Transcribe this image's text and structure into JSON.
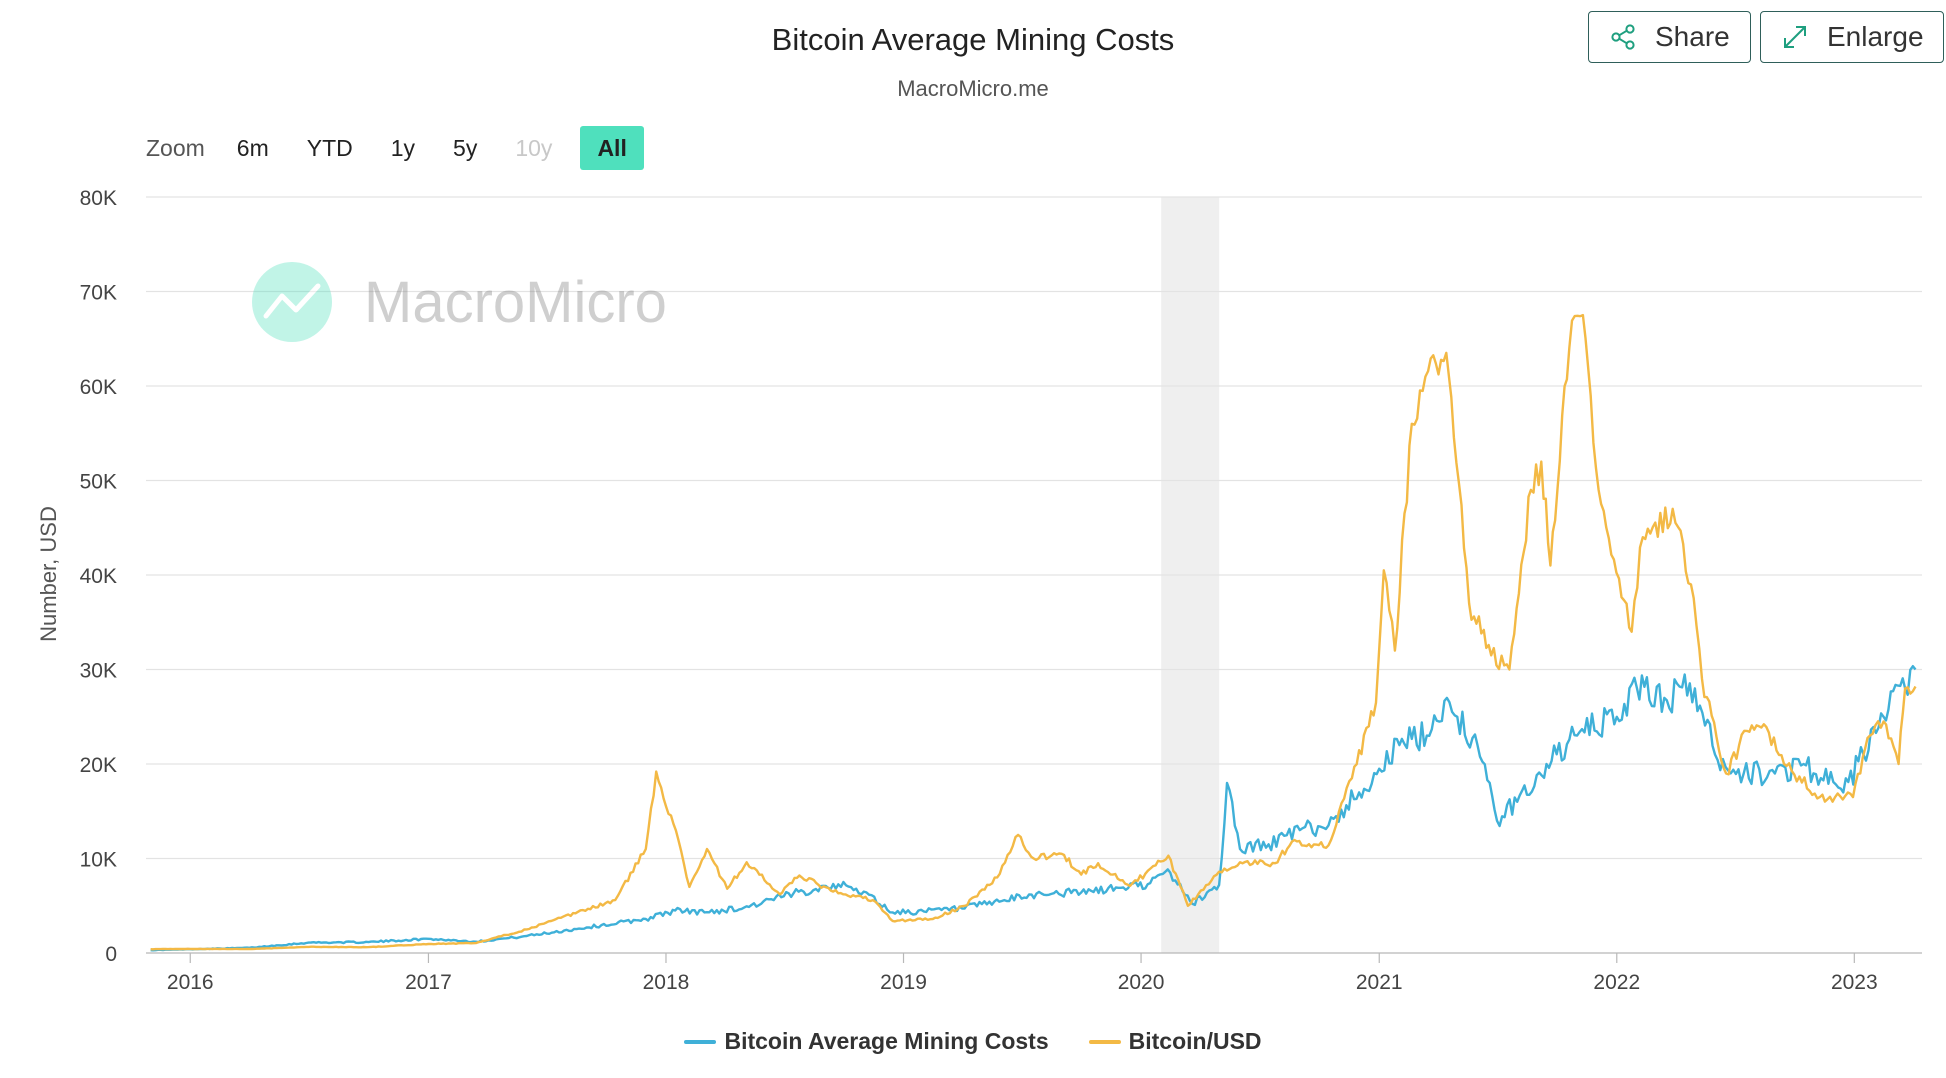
{
  "header": {
    "title": "Bitcoin Average Mining Costs",
    "subtitle": "MacroMicro.me"
  },
  "toolbar": {
    "share_label": "Share",
    "enlarge_label": "Enlarge",
    "share_icon": "share-icon",
    "enlarge_icon": "enlarge-icon"
  },
  "zoom": {
    "label": "Zoom",
    "buttons": [
      "6m",
      "YTD",
      "1y",
      "5y",
      "10y",
      "All"
    ],
    "active": "All",
    "disabled": [
      "10y"
    ]
  },
  "watermark": {
    "text": "MacroMicro",
    "icon": "macromicro-logo-icon"
  },
  "colors": {
    "mining_cost": "#3fb0d8",
    "price": "#f3b945",
    "zoom_active": "#4fe0bd",
    "shade": "#efefef"
  },
  "chart_data": {
    "type": "line",
    "title": "Bitcoin Average Mining Costs",
    "ylabel": "Number, USD",
    "xlabel": "",
    "ylim": [
      0,
      80000
    ],
    "xlim": [
      "2015-10-25",
      "2023-04-15"
    ],
    "y_ticks": [
      "0",
      "10K",
      "20K",
      "30K",
      "40K",
      "50K",
      "60K",
      "70K",
      "80K"
    ],
    "x_ticks": [
      "2016",
      "2017",
      "2018",
      "2019",
      "2020",
      "2021",
      "2022",
      "2023"
    ],
    "grid": true,
    "legend_position": "bottom-center",
    "shaded_band": {
      "start": "2020-02-01",
      "end": "2020-04-30"
    },
    "series": [
      {
        "name": "Bitcoin Average Mining Costs",
        "points": [
          [
            "2015-11-01",
            300
          ],
          [
            "2016-01-01",
            400
          ],
          [
            "2016-04-01",
            550
          ],
          [
            "2016-07-01",
            1100
          ],
          [
            "2016-10-01",
            1150
          ],
          [
            "2017-01-01",
            1500
          ],
          [
            "2017-03-15",
            1200
          ],
          [
            "2017-06-01",
            1800
          ],
          [
            "2017-09-01",
            2700
          ],
          [
            "2017-12-01",
            3600
          ],
          [
            "2018-01-15",
            4500
          ],
          [
            "2018-03-01",
            4300
          ],
          [
            "2018-05-01",
            4800
          ],
          [
            "2018-07-01",
            6000
          ],
          [
            "2018-09-15",
            7300
          ],
          [
            "2018-11-01",
            6500
          ],
          [
            "2018-12-15",
            4300
          ],
          [
            "2019-02-01",
            4400
          ],
          [
            "2019-04-01",
            4700
          ],
          [
            "2019-06-01",
            5500
          ],
          [
            "2019-08-01",
            6300
          ],
          [
            "2019-10-01",
            6400
          ],
          [
            "2019-12-01",
            6900
          ],
          [
            "2020-01-15",
            7400
          ],
          [
            "2020-02-15",
            8500
          ],
          [
            "2020-03-20",
            5200
          ],
          [
            "2020-04-30",
            7200
          ],
          [
            "2020-05-12",
            18000
          ],
          [
            "2020-06-01",
            11000
          ],
          [
            "2020-07-15",
            11500
          ],
          [
            "2020-09-01",
            13000
          ],
          [
            "2020-10-15",
            13500
          ],
          [
            "2020-12-01",
            17000
          ],
          [
            "2021-01-01",
            19500
          ],
          [
            "2021-02-01",
            22000
          ],
          [
            "2021-03-15",
            23000
          ],
          [
            "2021-04-15",
            27000
          ],
          [
            "2021-05-01",
            25000
          ],
          [
            "2021-06-01",
            22000
          ],
          [
            "2021-07-01",
            14000
          ],
          [
            "2021-08-01",
            16000
          ],
          [
            "2021-09-15",
            20000
          ],
          [
            "2021-11-01",
            23000
          ],
          [
            "2022-01-01",
            25000
          ],
          [
            "2022-02-01",
            28000
          ],
          [
            "2022-03-15",
            27000
          ],
          [
            "2022-05-01",
            28000
          ],
          [
            "2022-06-01",
            21000
          ],
          [
            "2022-07-15",
            19000
          ],
          [
            "2022-09-01",
            19000
          ],
          [
            "2022-10-15",
            20000
          ],
          [
            "2022-12-15",
            17000
          ],
          [
            "2023-01-15",
            21000
          ],
          [
            "2023-02-15",
            25000
          ],
          [
            "2023-03-20",
            28000
          ],
          [
            "2023-04-05",
            30000
          ]
        ]
      },
      {
        "name": "Bitcoin/USD",
        "points": [
          [
            "2015-11-01",
            400
          ],
          [
            "2016-01-01",
            430
          ],
          [
            "2016-04-01",
            420
          ],
          [
            "2016-07-01",
            650
          ],
          [
            "2016-10-01",
            620
          ],
          [
            "2017-01-01",
            950
          ],
          [
            "2017-03-15",
            1050
          ],
          [
            "2017-06-01",
            2500
          ],
          [
            "2017-08-15",
            4200
          ],
          [
            "2017-10-15",
            5600
          ],
          [
            "2017-12-01",
            11000
          ],
          [
            "2017-12-17",
            19200
          ],
          [
            "2018-01-20",
            12000
          ],
          [
            "2018-02-06",
            7000
          ],
          [
            "2018-03-05",
            11000
          ],
          [
            "2018-04-05",
            6800
          ],
          [
            "2018-05-05",
            9600
          ],
          [
            "2018-06-25",
            6200
          ],
          [
            "2018-07-25",
            8200
          ],
          [
            "2018-09-15",
            6500
          ],
          [
            "2018-11-15",
            5600
          ],
          [
            "2018-12-15",
            3400
          ],
          [
            "2019-02-15",
            3600
          ],
          [
            "2019-04-05",
            5000
          ],
          [
            "2019-05-25",
            8000
          ],
          [
            "2019-06-26",
            12500
          ],
          [
            "2019-07-20",
            10000
          ],
          [
            "2019-09-01",
            10500
          ],
          [
            "2019-10-01",
            8300
          ],
          [
            "2019-10-27",
            9500
          ],
          [
            "2019-12-15",
            7100
          ],
          [
            "2020-02-12",
            10300
          ],
          [
            "2020-03-13",
            5000
          ],
          [
            "2020-04-30",
            8600
          ],
          [
            "2020-06-01",
            9600
          ],
          [
            "2020-07-25",
            9500
          ],
          [
            "2020-08-20",
            11800
          ],
          [
            "2020-10-15",
            11400
          ],
          [
            "2020-11-20",
            18500
          ],
          [
            "2020-12-27",
            26500
          ],
          [
            "2021-01-08",
            40500
          ],
          [
            "2021-01-25",
            32000
          ],
          [
            "2021-02-20",
            56000
          ],
          [
            "2021-03-13",
            61000
          ],
          [
            "2021-04-14",
            63500
          ],
          [
            "2021-05-19",
            37000
          ],
          [
            "2021-06-22",
            31500
          ],
          [
            "2021-07-20",
            30000
          ],
          [
            "2021-08-22",
            49000
          ],
          [
            "2021-09-07",
            52000
          ],
          [
            "2021-09-21",
            41000
          ],
          [
            "2021-10-20",
            64000
          ],
          [
            "2021-11-10",
            67500
          ],
          [
            "2021-12-04",
            49000
          ],
          [
            "2022-01-24",
            34000
          ],
          [
            "2022-02-10",
            44000
          ],
          [
            "2022-03-28",
            47000
          ],
          [
            "2022-04-25",
            39000
          ],
          [
            "2022-05-12",
            29000
          ],
          [
            "2022-06-18",
            19000
          ],
          [
            "2022-07-20",
            23500
          ],
          [
            "2022-08-15",
            24200
          ],
          [
            "2022-09-15",
            20000
          ],
          [
            "2022-11-09",
            16500
          ],
          [
            "2022-12-30",
            16500
          ],
          [
            "2023-01-25",
            23000
          ],
          [
            "2023-02-15",
            24500
          ],
          [
            "2023-03-10",
            20000
          ],
          [
            "2023-03-20",
            28000
          ],
          [
            "2023-04-05",
            28200
          ]
        ]
      }
    ]
  }
}
